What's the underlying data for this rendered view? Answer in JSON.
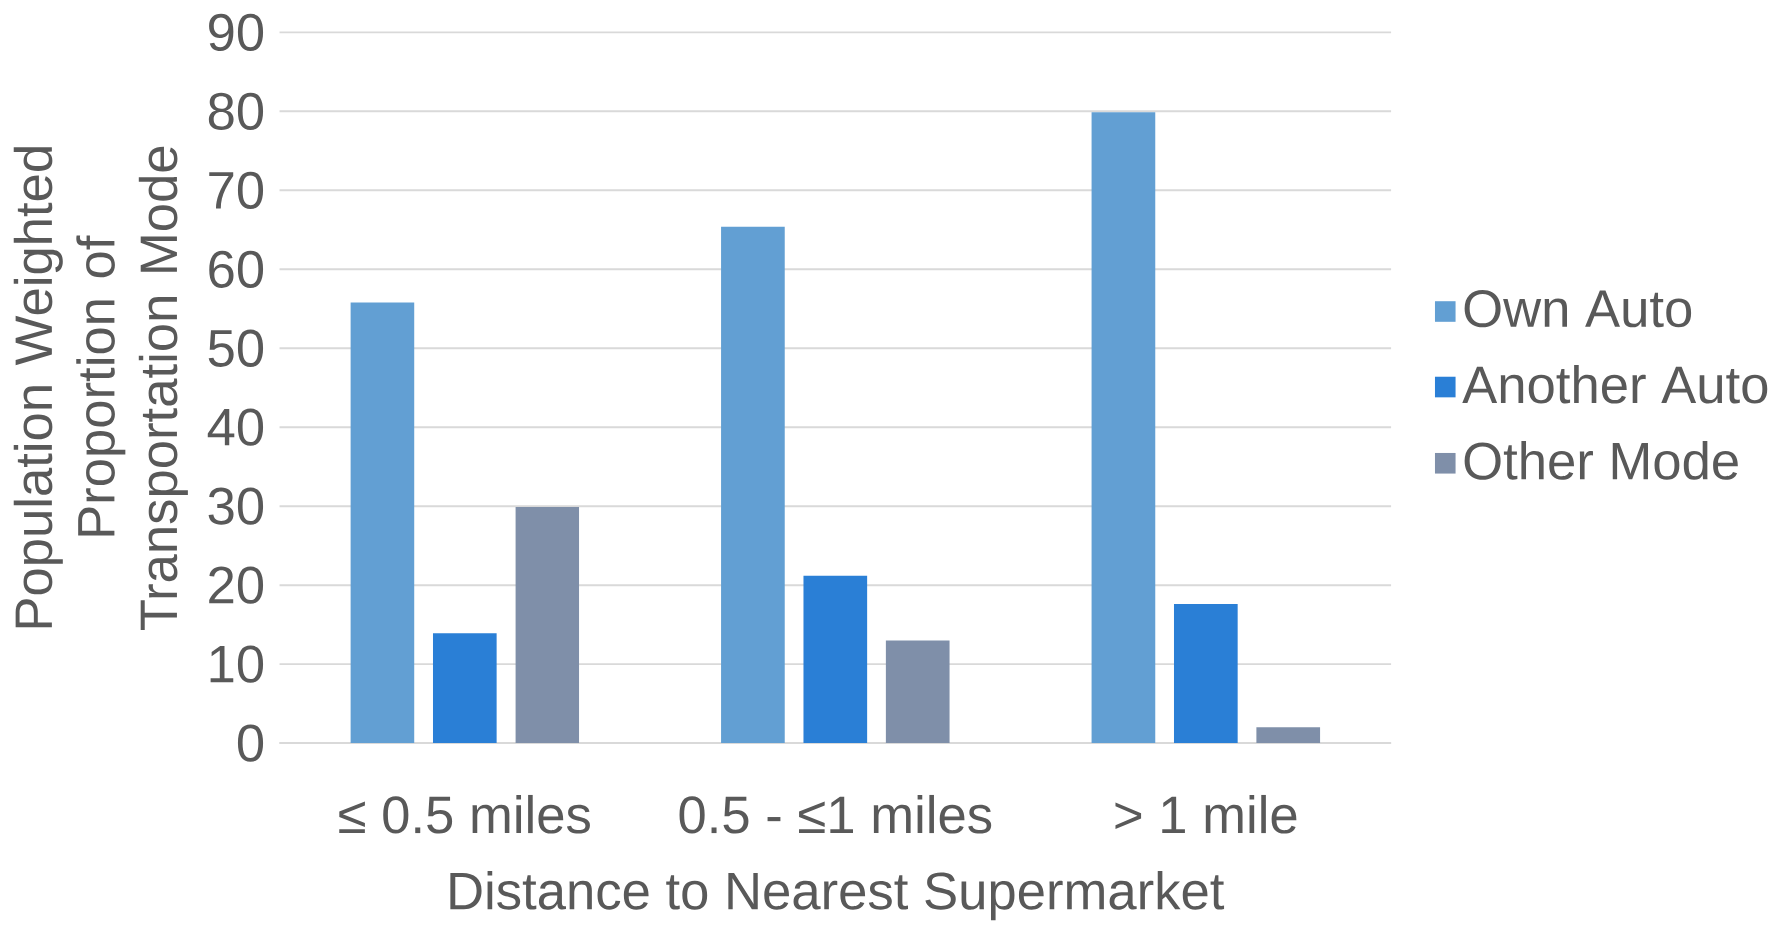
{
  "chart_data": {
    "type": "bar",
    "xlabel": "Distance to Nearest Supermarket",
    "ylabel": "Population Weighted Proportion of Transportation Mode",
    "categories": [
      "≤ 0.5 miles",
      "0.5 - ≤1 miles",
      "> 1 mile"
    ],
    "series": [
      {
        "name": "Own Auto",
        "color": "#629fd3",
        "values": [
          55.8,
          65.4,
          79.9
        ]
      },
      {
        "name": "Another Auto",
        "color": "#2a7fd6",
        "values": [
          13.9,
          21.2,
          17.6
        ]
      },
      {
        "name": "Other Mode",
        "color": "#7f8fa9",
        "values": [
          29.9,
          13.0,
          2.0
        ]
      }
    ],
    "ylim": [
      0,
      90
    ],
    "yticks": [
      0,
      10,
      20,
      30,
      40,
      50,
      60,
      70,
      80,
      90
    ],
    "grid": "y",
    "legend": "right"
  }
}
